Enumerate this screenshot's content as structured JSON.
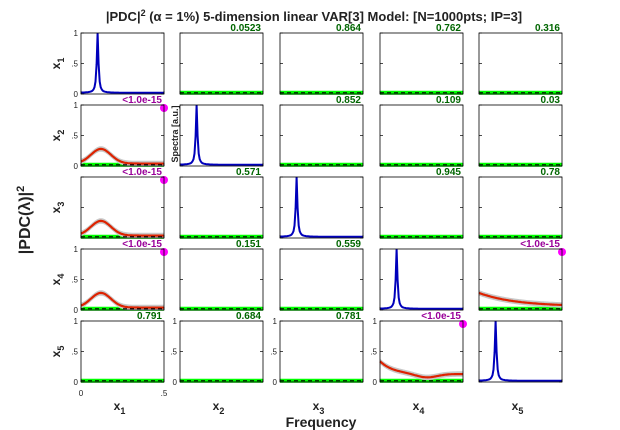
{
  "chart_data": {
    "type": "line",
    "title_main": "|PDC|",
    "title_sup": "2",
    "title_rest": " (α = 1%) 5-dimension linear VAR[3] Model: [N=1000pts; IP=3]",
    "ylabel": "|PDC(λ)|",
    "ylabel_sup": "2",
    "xlabel": "Frequency",
    "spectra_label": "Spectra [a.u.]",
    "variables": [
      "x1",
      "x2",
      "x3",
      "x4",
      "x5"
    ],
    "row_labels": [
      {
        "base": "x",
        "sub": "1"
      },
      {
        "base": "x",
        "sub": "2"
      },
      {
        "base": "x",
        "sub": "3"
      },
      {
        "base": "x",
        "sub": "4"
      },
      {
        "base": "x",
        "sub": "5"
      }
    ],
    "col_labels": [
      {
        "base": "x",
        "sub": "1"
      },
      {
        "base": "x",
        "sub": "2"
      },
      {
        "base": "x",
        "sub": "3"
      },
      {
        "base": "x",
        "sub": "4"
      },
      {
        "base": "x",
        "sub": "5"
      }
    ],
    "y_ticks": [
      "0",
      ".5",
      "1"
    ],
    "x_ticks": [
      "0",
      ".5"
    ],
    "xlim": [
      0,
      0.5
    ],
    "ylim": [
      0,
      1
    ],
    "significance_marker_color": "#ff00ff",
    "significant_label_color": "#990099",
    "nonsignificant_label_color": "#006600",
    "pdc_color": "#dd2200",
    "threshold_color": "#00ff00",
    "spectrum_color": "#0000bb",
    "cells": [
      [
        {
          "kind": "spectrum",
          "peak": 0.1
        },
        {
          "kind": "pdc",
          "p": "0.0523",
          "sig": false
        },
        {
          "kind": "pdc",
          "p": "0.864",
          "sig": false
        },
        {
          "kind": "pdc",
          "p": "0.762",
          "sig": false
        },
        {
          "kind": "pdc",
          "p": "0.316",
          "sig": false
        }
      ],
      [
        {
          "kind": "pdc",
          "p": "<1.0e-15",
          "sig": true,
          "shape": "hump"
        },
        {
          "kind": "spectrum",
          "peak": 0.1
        },
        {
          "kind": "pdc",
          "p": "0.852",
          "sig": false
        },
        {
          "kind": "pdc",
          "p": "0.109",
          "sig": false
        },
        {
          "kind": "pdc",
          "p": "0.03",
          "sig": false
        }
      ],
      [
        {
          "kind": "pdc",
          "p": "<1.0e-15",
          "sig": true,
          "shape": "hump"
        },
        {
          "kind": "pdc",
          "p": "0.571",
          "sig": false
        },
        {
          "kind": "spectrum",
          "peak": 0.1
        },
        {
          "kind": "pdc",
          "p": "0.945",
          "sig": false
        },
        {
          "kind": "pdc",
          "p": "0.78",
          "sig": false
        }
      ],
      [
        {
          "kind": "pdc",
          "p": "<1.0e-15",
          "sig": true,
          "shape": "hump"
        },
        {
          "kind": "pdc",
          "p": "0.151",
          "sig": false
        },
        {
          "kind": "pdc",
          "p": "0.559",
          "sig": false
        },
        {
          "kind": "spectrum",
          "peak": 0.1
        },
        {
          "kind": "pdc",
          "p": "<1.0e-15",
          "sig": true,
          "shape": "decay"
        }
      ],
      [
        {
          "kind": "pdc",
          "p": "0.791",
          "sig": false
        },
        {
          "kind": "pdc",
          "p": "0.684",
          "sig": false
        },
        {
          "kind": "pdc",
          "p": "0.781",
          "sig": false
        },
        {
          "kind": "pdc",
          "p": "<1.0e-15",
          "sig": true,
          "shape": "dip"
        },
        {
          "kind": "spectrum",
          "peak": 0.1
        }
      ]
    ]
  }
}
